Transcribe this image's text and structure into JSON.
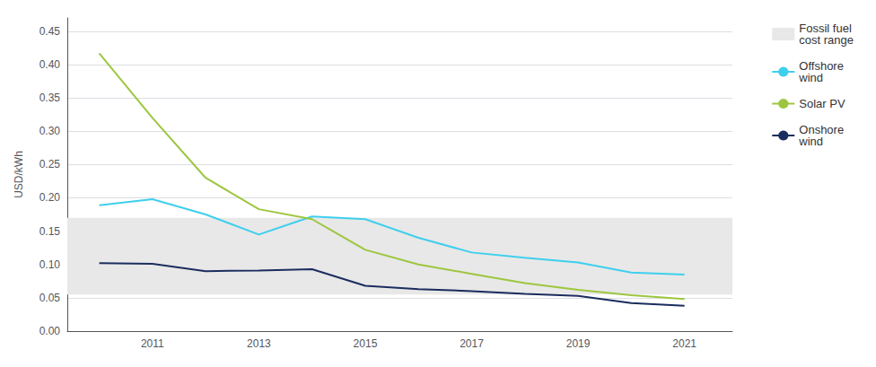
{
  "chart_data": {
    "type": "line",
    "x": [
      2010,
      2011,
      2012,
      2013,
      2014,
      2015,
      2016,
      2017,
      2018,
      2019,
      2020,
      2021
    ],
    "xlim": [
      2009.4,
      2021.9
    ],
    "xticks": [
      2011,
      2013,
      2015,
      2017,
      2019,
      2021
    ],
    "ylim": [
      0.0,
      0.47
    ],
    "yticks": [
      {
        "value": 0.0,
        "label": "0.00"
      },
      0.05,
      {
        "value": 0.1,
        "label": "0.10"
      },
      0.15,
      {
        "value": 0.2,
        "label": "0.20"
      },
      0.25,
      {
        "value": 0.3,
        "label": "0.30"
      },
      0.35,
      {
        "value": 0.4,
        "label": "0.40"
      },
      0.45
    ],
    "ylabel": "USD/kWh",
    "grid": "y",
    "legend": "right",
    "series": [
      {
        "name": "Fossil fuel\ncost range",
        "type": "band",
        "color": "#e8e8e8",
        "range": [
          0.055,
          0.17
        ]
      },
      {
        "name": "Offshore\nwind",
        "type": "line",
        "color": "#3ecfed",
        "values": [
          0.189,
          0.198,
          0.175,
          0.145,
          0.172,
          0.168,
          0.14,
          0.118,
          0.11,
          0.103,
          0.088,
          0.085
        ]
      },
      {
        "name": "Solar PV",
        "type": "line",
        "color": "#9dc63f",
        "values": [
          0.417,
          0.32,
          0.23,
          0.183,
          0.168,
          0.122,
          0.1,
          0.086,
          0.072,
          0.062,
          0.054,
          0.048
        ]
      },
      {
        "name": "Onshore\nwind",
        "type": "line",
        "color": "#1b2d5e",
        "values": [
          0.102,
          0.101,
          0.09,
          0.091,
          0.093,
          0.068,
          0.063,
          0.06,
          0.056,
          0.053,
          0.042,
          0.038
        ]
      }
    ]
  }
}
